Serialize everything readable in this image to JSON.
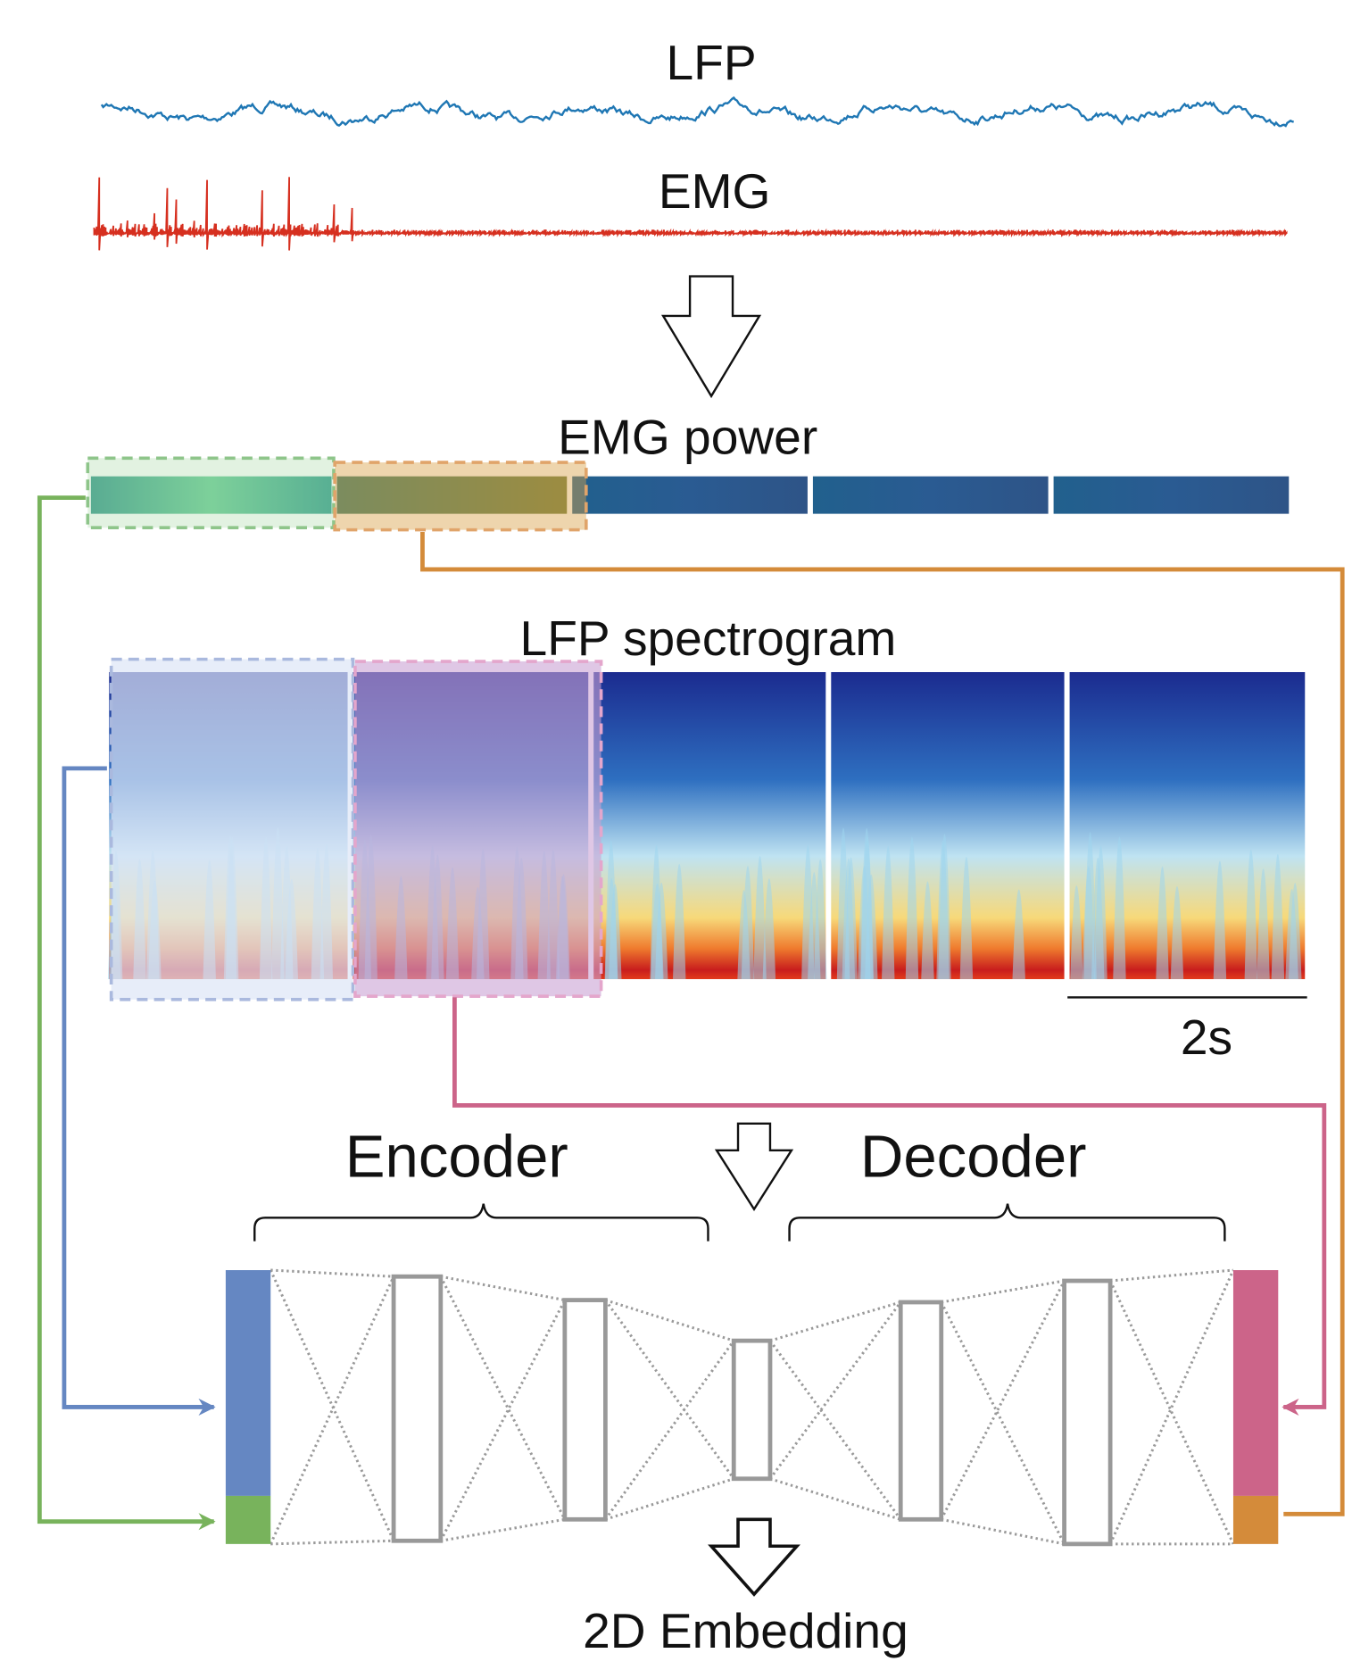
{
  "labels": {
    "lfp": "LFP",
    "emg": "EMG",
    "emg_power": "EMG power",
    "lfp_spectrogram": "LFP spectrogram",
    "scale_bar": "2s",
    "encoder": "Encoder",
    "decoder": "Decoder",
    "embedding": "2D Embedding"
  }
}
